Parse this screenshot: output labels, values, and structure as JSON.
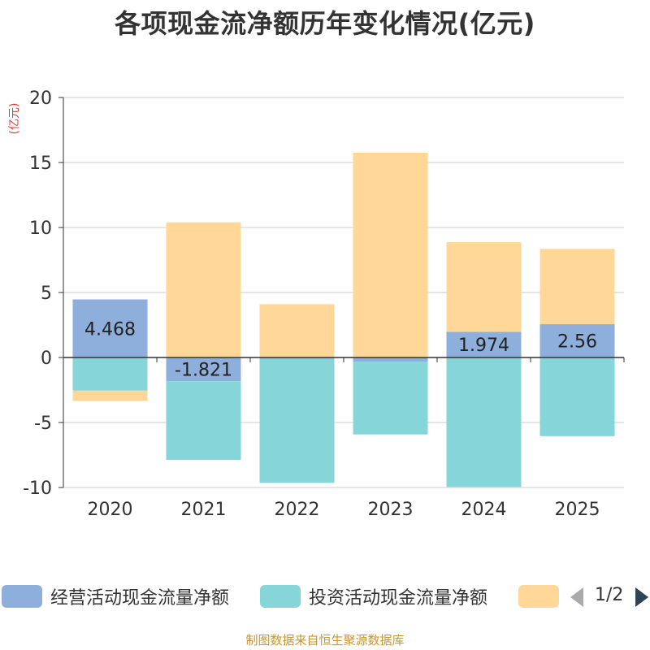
{
  "chart_data": {
    "type": "bar",
    "stacked": true,
    "title": "各项现金流净额历年变化情况(亿元)",
    "ylabel": "(亿元)",
    "ylim": [
      -10,
      20
    ],
    "yticks": [
      20,
      15,
      10,
      5,
      0,
      -5,
      -10
    ],
    "categories": [
      "2020",
      "2021",
      "2022",
      "2023",
      "2024",
      "2025"
    ],
    "series": [
      {
        "name": "经营活动现金流量净额",
        "color": "#8eaedb",
        "values": [
          4.468,
          -1.821,
          -0.096,
          -0.317,
          1.974,
          2.56
        ],
        "labels": [
          "4.468",
          "-1.821",
          "",
          "",
          "1.974",
          "2.56"
        ]
      },
      {
        "name": "投资活动现金流量净额",
        "color": "#86d5d8",
        "values": [
          -2.55,
          -6.05,
          -9.55,
          -5.6,
          -9.95,
          -6.05
        ],
        "labels": [
          "",
          "",
          "",
          "",
          "",
          ""
        ]
      },
      {
        "name": "",
        "color": "#ffd899",
        "values": [
          -0.8,
          10.4,
          4.1,
          15.75,
          6.9,
          5.8
        ],
        "labels": [
          "",
          "",
          "",
          "",
          "",
          ""
        ]
      }
    ],
    "legend_position": "bottom",
    "grid": true
  },
  "legend": {
    "page_text": "1/2"
  },
  "source_note": "制图数据来自恒生聚源数据库"
}
